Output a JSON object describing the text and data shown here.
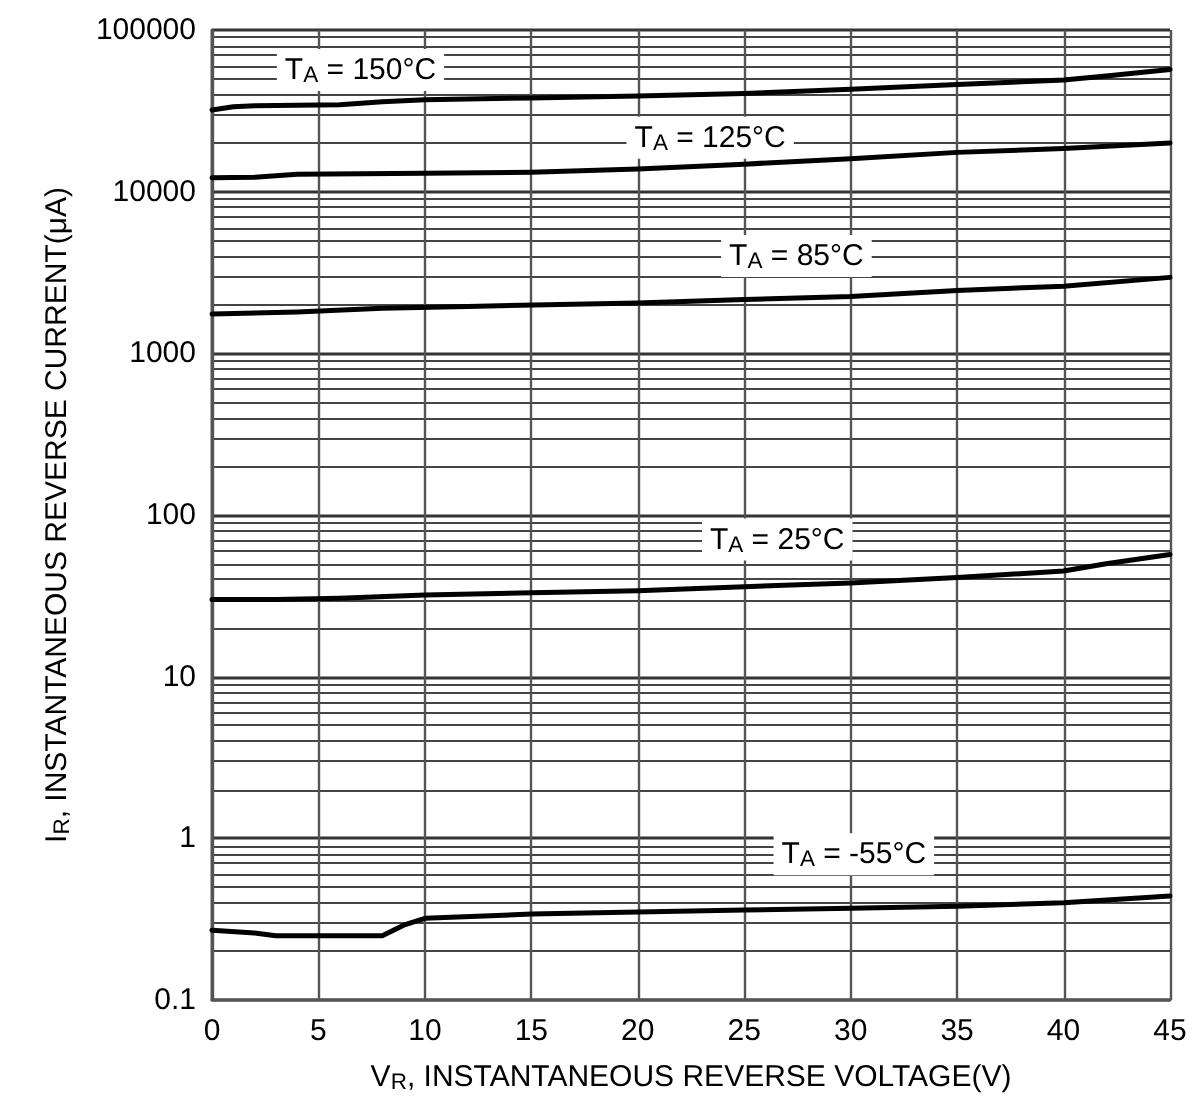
{
  "chart_data": {
    "type": "line",
    "xlabel": "V$_{R}$, INSTANTANEOUS REVERSE VOLTAGE(V)",
    "ylabel": "I$_{R}$, INSTANTANEOUS REVERSE CURRENT(μA)",
    "log": "y",
    "grid": true,
    "marker": "none",
    "line_style": "solid",
    "xlim": [
      0,
      45
    ],
    "xticks": [
      0,
      5,
      10,
      15,
      20,
      25,
      30,
      35,
      40,
      45
    ],
    "ylim": [
      0.1,
      100000
    ],
    "yticks": [
      0.1,
      1,
      10,
      100,
      1000,
      10000,
      100000
    ],
    "series": [
      {
        "name": "T$_{A}$ = 150°C",
        "color": "#000000",
        "x": [
          0,
          1,
          2,
          6,
          8,
          10,
          15,
          20,
          25,
          30,
          35,
          40,
          42,
          45
        ],
        "values": [
          32000,
          33500,
          34000,
          34500,
          36000,
          37000,
          38000,
          39000,
          40500,
          43000,
          46000,
          49000,
          52000,
          57000
        ]
      },
      {
        "name": "T$_{A}$ = 125°C",
        "color": "#000000",
        "x": [
          0,
          2,
          4,
          10,
          15,
          20,
          25,
          30,
          35,
          40,
          45
        ],
        "values": [
          12200,
          12300,
          12800,
          13000,
          13200,
          13800,
          14800,
          16000,
          17500,
          18500,
          20000
        ]
      },
      {
        "name": "T$_{A}$ = 85°C",
        "color": "#000000",
        "x": [
          0,
          4,
          8,
          12,
          20,
          25,
          30,
          35,
          40,
          45
        ],
        "values": [
          1750,
          1800,
          1900,
          1950,
          2050,
          2150,
          2250,
          2450,
          2600,
          2950
        ]
      },
      {
        "name": "T$_{A}$ = 25°C",
        "color": "#000000",
        "x": [
          0,
          3,
          6,
          10,
          15,
          20,
          25,
          30,
          35,
          40,
          42,
          45
        ],
        "values": [
          30,
          30,
          30.5,
          32,
          33,
          34,
          36,
          38,
          41,
          45,
          50,
          57
        ]
      },
      {
        "name": "T$_{A}$ = -55°C",
        "color": "#000000",
        "x": [
          0,
          2,
          3,
          8,
          9,
          10,
          15,
          20,
          25,
          30,
          35,
          40,
          45
        ],
        "values": [
          0.27,
          0.26,
          0.25,
          0.25,
          0.29,
          0.32,
          0.34,
          0.35,
          0.36,
          0.37,
          0.38,
          0.4,
          0.44
        ]
      }
    ]
  }
}
